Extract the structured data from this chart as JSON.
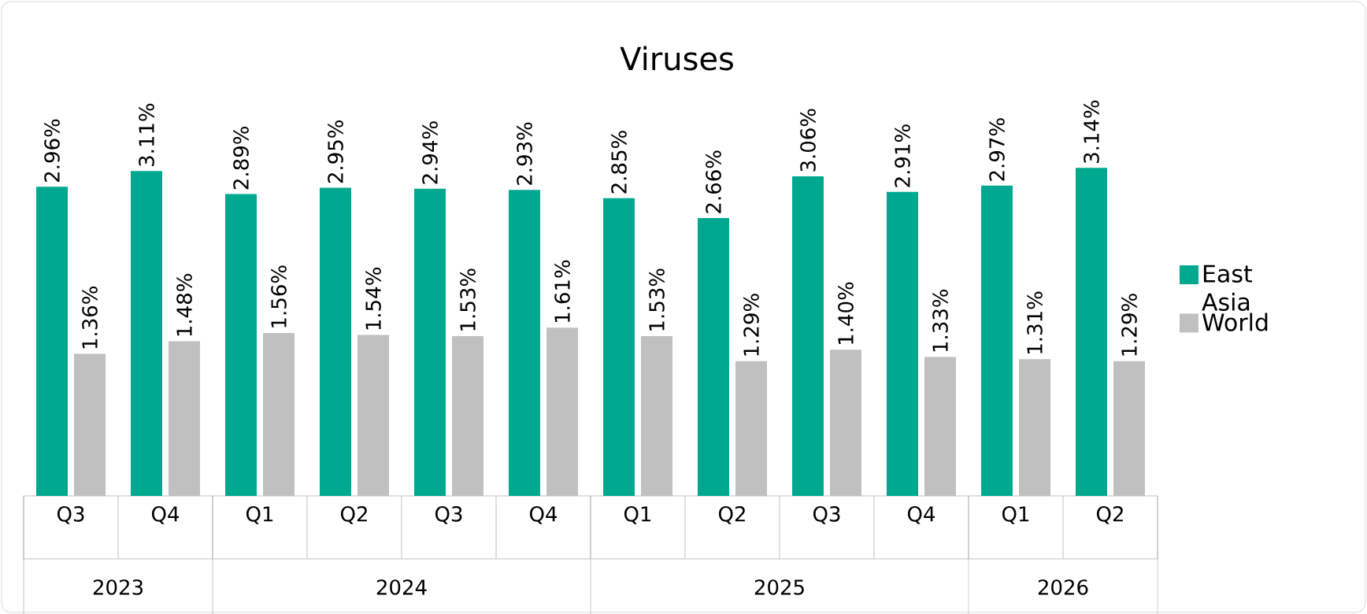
{
  "chart_data": {
    "type": "bar",
    "title": "Viruses",
    "categories": [
      "Q3",
      "Q4",
      "Q1",
      "Q2",
      "Q3",
      "Q4",
      "Q1",
      "Q2",
      "Q3",
      "Q4",
      "Q1",
      "Q2"
    ],
    "series": [
      {
        "name": "East Asia",
        "color": "#00a88f",
        "values": [
          2.96,
          3.11,
          2.89,
          2.95,
          2.94,
          2.93,
          2.85,
          2.66,
          3.06,
          2.91,
          2.97,
          3.14
        ],
        "value_labels": [
          "2.96%",
          "3.11%",
          "2.89%",
          "2.95%",
          "2.94%",
          "2.93%",
          "2.85%",
          "2.66%",
          "3.06%",
          "2.91%",
          "2.97%",
          "3.14%"
        ]
      },
      {
        "name": "World",
        "color": "#c0c0c0",
        "values": [
          1.36,
          1.48,
          1.56,
          1.54,
          1.53,
          1.61,
          1.53,
          1.29,
          1.4,
          1.33,
          1.31,
          1.29
        ],
        "value_labels": [
          "1.36%",
          "1.48%",
          "1.56%",
          "1.54%",
          "1.53%",
          "1.61%",
          "1.53%",
          "1.29%",
          "1.40%",
          "1.33%",
          "1.31%",
          "1.29%"
        ]
      }
    ],
    "annotations": [
      "2023",
      "2024",
      "2025",
      "2026"
    ],
    "legend": "right"
  }
}
